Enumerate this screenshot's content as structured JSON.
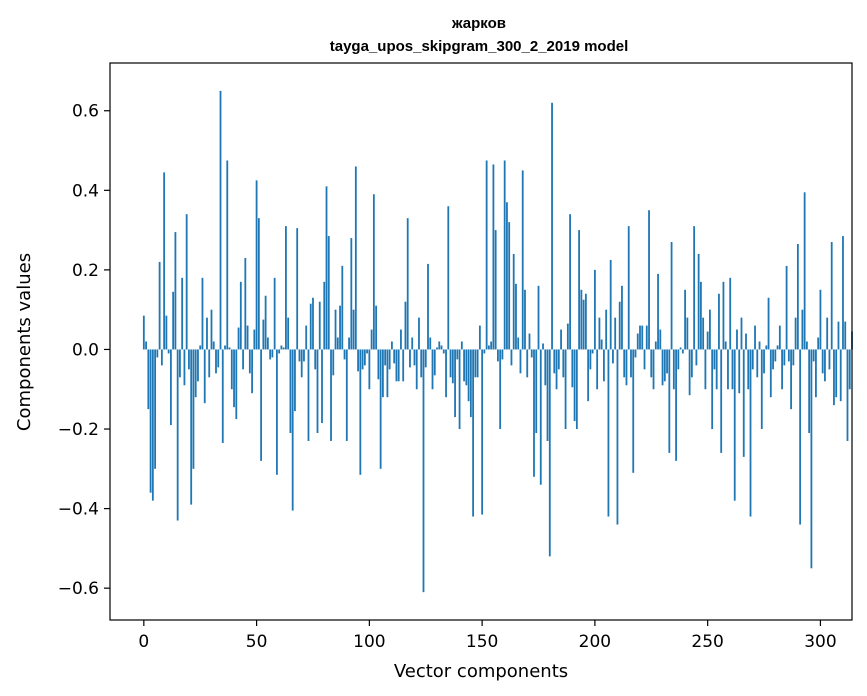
{
  "chart_data": {
    "type": "bar",
    "title": "жарков",
    "subtitle": "tayga_upos_skipgram_300_2_2019 model",
    "xlabel": "Vector components",
    "ylabel": "Components values",
    "xlim": [
      -15,
      314
    ],
    "ylim": [
      -0.68,
      0.72
    ],
    "xticks": [
      0,
      50,
      100,
      150,
      200,
      250,
      300
    ],
    "xtick_labels": [
      "0",
      "50",
      "100",
      "150",
      "200",
      "250",
      "300"
    ],
    "yticks": [
      -0.6,
      -0.4,
      -0.2,
      0.0,
      0.2,
      0.4,
      0.6
    ],
    "ytick_labels": [
      "−0.6",
      "−0.4",
      "−0.2",
      "0.0",
      "0.2",
      "0.4",
      "0.6"
    ],
    "grid": false,
    "bar_color": "#1f77b4",
    "values": [
      0.085,
      0.02,
      -0.15,
      -0.36,
      -0.38,
      -0.3,
      -0.02,
      0.22,
      -0.04,
      0.445,
      0.085,
      -0.01,
      -0.19,
      0.145,
      0.295,
      -0.43,
      -0.07,
      0.18,
      -0.09,
      0.34,
      -0.05,
      -0.39,
      -0.3,
      -0.12,
      -0.08,
      0.01,
      0.18,
      -0.135,
      0.08,
      -0.07,
      0.1,
      0.02,
      -0.06,
      -0.045,
      0.65,
      -0.235,
      0.01,
      0.475,
      0.005,
      -0.1,
      -0.145,
      -0.175,
      0.055,
      0.17,
      -0.05,
      0.23,
      0.06,
      -0.06,
      -0.11,
      0.05,
      0.425,
      0.33,
      -0.28,
      0.075,
      0.135,
      0.03,
      -0.025,
      -0.02,
      0.18,
      -0.315,
      -0.01,
      0.01,
      0.005,
      0.31,
      0.08,
      -0.21,
      -0.405,
      -0.155,
      0.305,
      -0.03,
      -0.07,
      -0.03,
      0.06,
      -0.23,
      0.115,
      0.13,
      -0.05,
      -0.21,
      0.12,
      -0.185,
      0.17,
      0.41,
      0.285,
      -0.23,
      -0.065,
      0.1,
      0.03,
      0.11,
      0.21,
      -0.025,
      -0.23,
      0.03,
      0.28,
      0.1,
      0.46,
      -0.055,
      -0.315,
      -0.05,
      -0.04,
      -0.01,
      -0.1,
      0.05,
      0.39,
      0.11,
      -0.075,
      -0.3,
      -0.12,
      -0.04,
      -0.12,
      -0.05,
      0.02,
      -0.035,
      -0.08,
      -0.08,
      0.05,
      -0.08,
      0.12,
      0.33,
      -0.045,
      0.03,
      -0.04,
      -0.1,
      0.08,
      -0.07,
      -0.61,
      -0.045,
      0.215,
      0.03,
      -0.1,
      -0.065,
      0.005,
      0.02,
      0.01,
      -0.01,
      -0.12,
      0.36,
      -0.07,
      -0.085,
      -0.17,
      -0.025,
      -0.2,
      0.02,
      -0.08,
      -0.09,
      -0.13,
      -0.17,
      -0.42,
      -0.07,
      -0.07,
      0.06,
      -0.415,
      -0.01,
      0.475,
      0.01,
      0.02,
      0.465,
      0.3,
      -0.03,
      -0.2,
      -0.025,
      0.475,
      0.37,
      0.32,
      -0.04,
      0.24,
      0.165,
      0.03,
      -0.06,
      0.45,
      0.15,
      -0.07,
      0.04,
      -0.02,
      -0.32,
      -0.21,
      0.16,
      -0.34,
      0.015,
      -0.09,
      -0.23,
      -0.52,
      0.62,
      -0.06,
      -0.1,
      -0.05,
      0.05,
      -0.07,
      -0.2,
      0.065,
      0.34,
      -0.095,
      -0.18,
      -0.2,
      0.3,
      0.15,
      0.125,
      0.14,
      -0.13,
      -0.05,
      -0.01,
      0.2,
      -0.1,
      0.08,
      0.025,
      -0.08,
      0.1,
      -0.42,
      0.225,
      -0.035,
      0.08,
      -0.44,
      0.12,
      0.16,
      -0.07,
      -0.09,
      0.31,
      -0.07,
      -0.31,
      -0.02,
      0.04,
      0.06,
      0.06,
      -0.05,
      0.06,
      0.35,
      -0.07,
      -0.1,
      0.02,
      0.19,
      0.05,
      -0.09,
      -0.08,
      -0.06,
      -0.26,
      0.27,
      -0.1,
      -0.28,
      -0.05,
      0.005,
      -0.01,
      0.15,
      0.08,
      -0.115,
      -0.07,
      0.31,
      -0.04,
      0.24,
      0.17,
      0.08,
      -0.1,
      0.045,
      0.1,
      -0.2,
      -0.05,
      -0.1,
      0.14,
      -0.26,
      0.17,
      0.02,
      -0.1,
      0.18,
      -0.1,
      -0.38,
      0.05,
      -0.11,
      0.08,
      -0.27,
      0.04,
      -0.1,
      -0.42,
      -0.05,
      0.06,
      -0.07,
      0.02,
      -0.2,
      -0.06,
      0.01,
      0.13,
      -0.12,
      -0.05,
      -0.03,
      0.01,
      0.06,
      -0.1,
      -0.04,
      0.21,
      -0.03,
      -0.15,
      -0.04,
      0.08,
      0.265,
      -0.44,
      0.1,
      0.395,
      0.02,
      -0.21,
      -0.55,
      -0.03,
      -0.12,
      0.03,
      0.15,
      -0.06,
      -0.08,
      0.08,
      -0.05,
      0.27,
      -0.14,
      -0.12,
      0.07,
      -0.13,
      0.285,
      0.07,
      -0.23,
      -0.1,
      0.045
    ]
  }
}
